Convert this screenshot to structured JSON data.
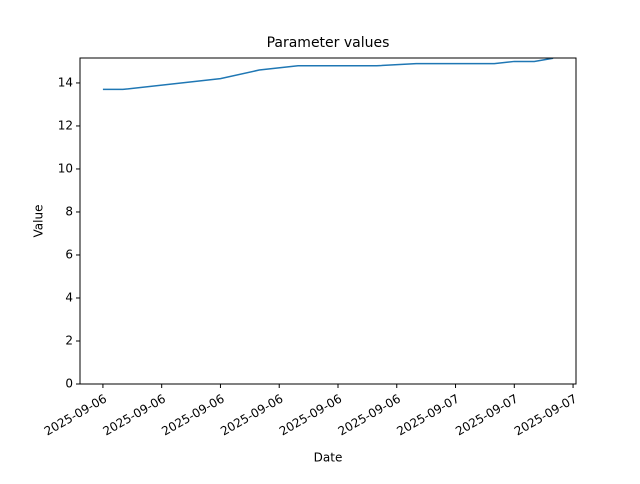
{
  "chart_data": {
    "type": "line",
    "title": "Parameter values",
    "x_label": "Date",
    "y_label": "Value",
    "x": [
      0,
      0.34,
      2.0,
      2.66,
      3.32,
      4.66,
      5.33,
      6.66,
      7.0,
      7.34,
      7.66
    ],
    "series": [
      {
        "name": "Value",
        "color": "#1f77b4",
        "values": [
          13.7,
          13.7,
          14.2,
          14.6,
          14.8,
          14.8,
          14.9,
          14.9,
          15.0,
          15.0,
          15.15
        ]
      }
    ],
    "xlim": [
      -0.39,
      8.05
    ],
    "xticks": [
      {
        "value": 0,
        "label": "2025-09-06"
      },
      {
        "value": 1,
        "label": "2025-09-06"
      },
      {
        "value": 2,
        "label": "2025-09-06"
      },
      {
        "value": 3,
        "label": "2025-09-06"
      },
      {
        "value": 4,
        "label": "2025-09-06"
      },
      {
        "value": 5,
        "label": "2025-09-06"
      },
      {
        "value": 6,
        "label": "2025-09-07"
      },
      {
        "value": 7,
        "label": "2025-09-07"
      },
      {
        "value": 8,
        "label": "2025-09-07"
      }
    ],
    "ylim": [
      0,
      15.16
    ],
    "yticks": [
      0,
      2,
      4,
      6,
      8,
      10,
      12,
      14
    ],
    "grid": false
  }
}
